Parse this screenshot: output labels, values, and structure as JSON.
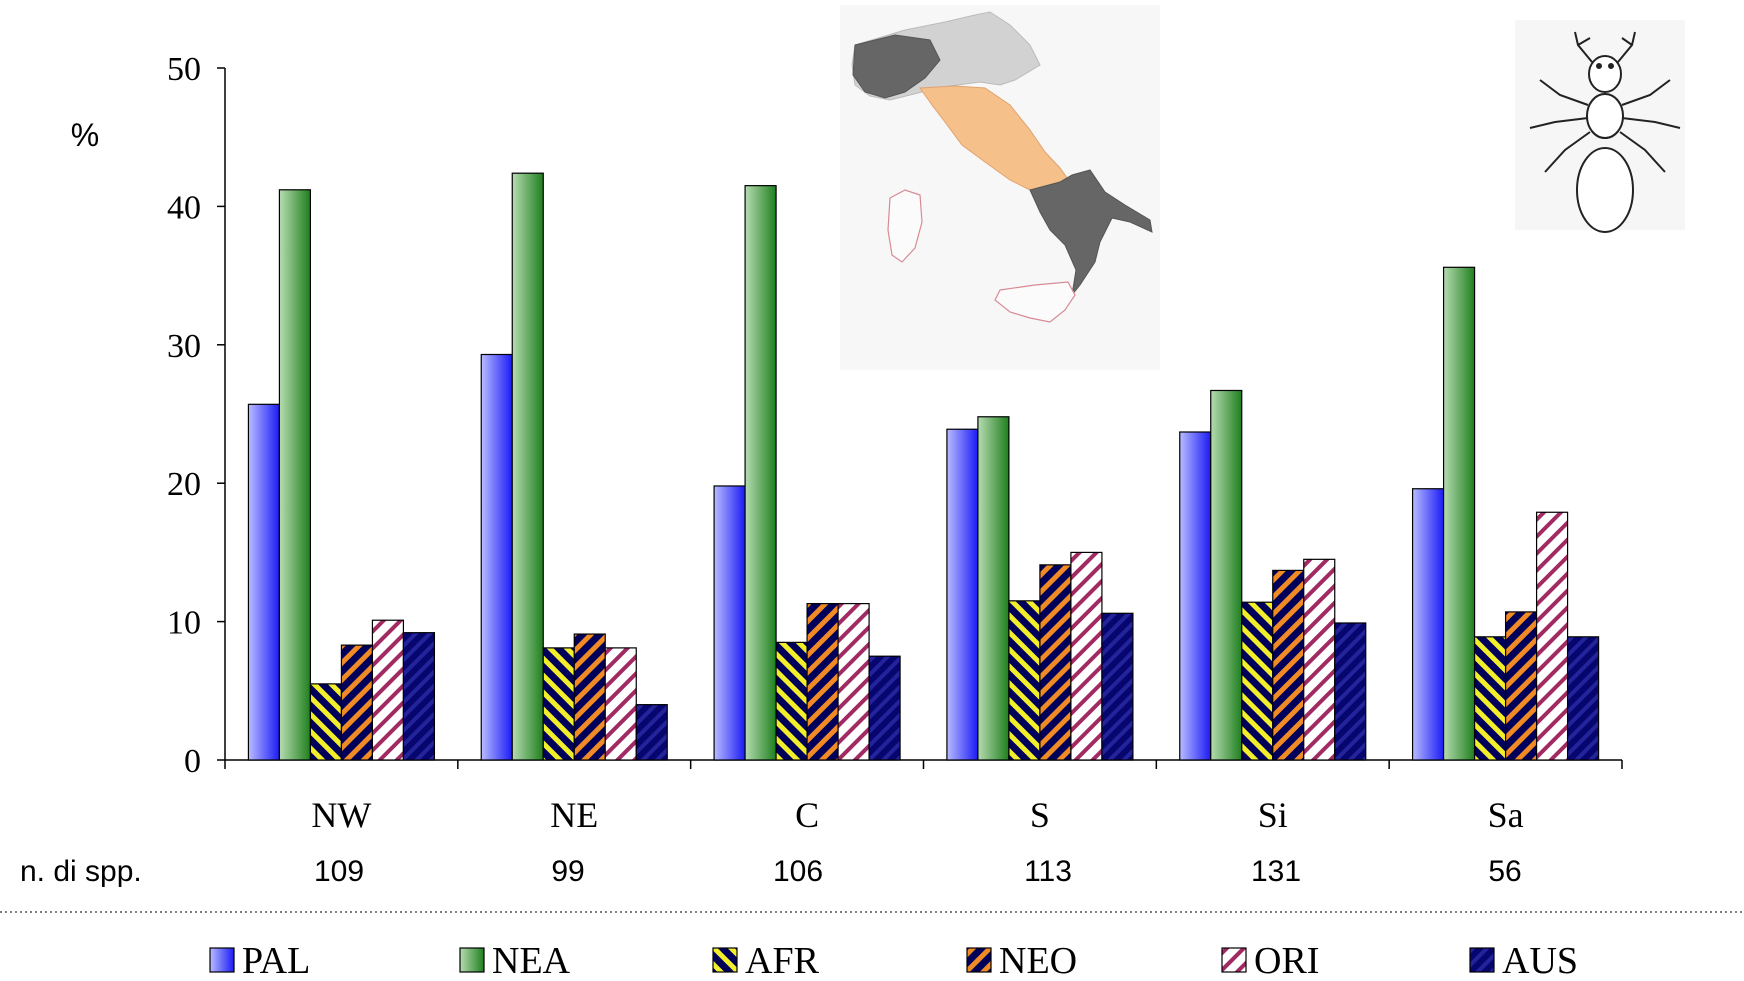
{
  "chart_data": {
    "type": "bar",
    "ylabel": "%",
    "ylim": [
      0,
      50
    ],
    "yticks": [
      0,
      10,
      20,
      30,
      40,
      50
    ],
    "categories": [
      "NW",
      "NE",
      "C",
      "S",
      "Si",
      "Sa"
    ],
    "count_label": "n. di spp.",
    "counts": [
      "109",
      "99",
      "106",
      "113",
      "131",
      "56"
    ],
    "series": [
      {
        "name": "PAL",
        "values": [
          25.7,
          29.3,
          19.8,
          23.9,
          23.7,
          19.6
        ],
        "pattern": "gradient",
        "colors": [
          "#b8bcff",
          "#1b1bf5"
        ]
      },
      {
        "name": "NEA",
        "values": [
          41.2,
          42.4,
          41.5,
          24.8,
          26.7,
          35.6
        ],
        "pattern": "gradient",
        "colors": [
          "#b6dcb1",
          "#1f7f1e"
        ]
      },
      {
        "name": "AFR",
        "values": [
          5.5,
          8.1,
          8.5,
          11.5,
          11.4,
          8.9
        ],
        "pattern": "hatch-back",
        "colors": [
          "#00005a",
          "#f2ef2a"
        ]
      },
      {
        "name": "NEO",
        "values": [
          8.3,
          9.1,
          11.3,
          14.1,
          13.7,
          10.7
        ],
        "pattern": "hatch",
        "colors": [
          "#00005a",
          "#f08a25"
        ]
      },
      {
        "name": "ORI",
        "values": [
          10.1,
          8.1,
          11.3,
          15.0,
          14.5,
          17.9
        ],
        "pattern": "hatch",
        "colors": [
          "#ffffff",
          "#a12a63"
        ]
      },
      {
        "name": "AUS",
        "values": [
          9.2,
          4.0,
          7.5,
          10.6,
          9.9,
          8.9
        ],
        "pattern": "hatch",
        "colors": [
          "#06066e",
          "#23239c"
        ]
      }
    ]
  },
  "icons": [
    "italy-regions-map",
    "ant-drawing"
  ]
}
